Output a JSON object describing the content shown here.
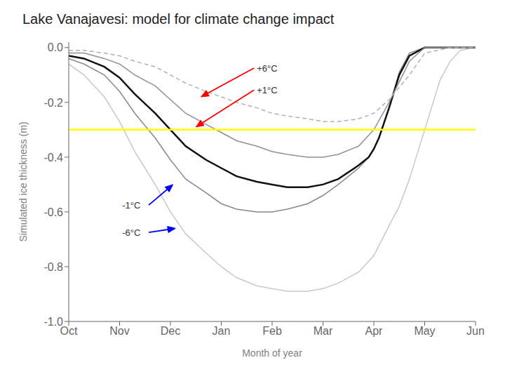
{
  "chart_data": {
    "type": "line",
    "title": "Lake Vanajavesi: model for climate change impact",
    "x_label": "Month of year",
    "y_label": "Simulated ice thickness (m)",
    "xlim": [
      0,
      8
    ],
    "xticks": [
      {
        "value": 0,
        "label": "Oct"
      },
      {
        "value": 1,
        "label": "Nov"
      },
      {
        "value": 2,
        "label": "Dec"
      },
      {
        "value": 3,
        "label": "Jan"
      },
      {
        "value": 4,
        "label": "Feb"
      },
      {
        "value": 5,
        "label": "Mar"
      },
      {
        "value": 6,
        "label": "Apr"
      },
      {
        "value": 7,
        "label": "May"
      },
      {
        "value": 8,
        "label": "Jun"
      }
    ],
    "ylim": [
      -1.0,
      0.02
    ],
    "yticks": [
      {
        "value": 0.0,
        "label": "0.0"
      },
      -0.2,
      -0.4,
      -0.6,
      -0.8,
      {
        "value": -1.0,
        "label": "-1.0"
      }
    ],
    "grid": false,
    "series": [
      {
        "color": "#c8c8c8",
        "line_style": "solid",
        "x": [
          0,
          0.3,
          0.7,
          1.0,
          1.3,
          1.7,
          2.0,
          2.3,
          2.7,
          3.0,
          3.3,
          3.7,
          4.0,
          4.3,
          4.7,
          5.0,
          5.3,
          5.7,
          6.0,
          6.3,
          6.5,
          6.7,
          7.0,
          7.3,
          7.5,
          7.7,
          8.0
        ],
        "values": [
          -0.06,
          -0.1,
          -0.18,
          -0.27,
          -0.38,
          -0.5,
          -0.6,
          -0.68,
          -0.75,
          -0.8,
          -0.84,
          -0.87,
          -0.88,
          -0.89,
          -0.89,
          -0.88,
          -0.86,
          -0.82,
          -0.76,
          -0.65,
          -0.58,
          -0.48,
          -0.3,
          -0.12,
          -0.05,
          -0.01,
          0.0
        ]
      },
      {
        "color": "#888888",
        "line_style": "solid",
        "x": [
          0,
          0.3,
          0.7,
          1.0,
          1.3,
          1.7,
          2.0,
          2.3,
          2.7,
          3.0,
          3.3,
          3.7,
          4.0,
          4.3,
          4.7,
          5.0,
          5.3,
          5.7,
          5.9,
          6.0,
          6.1,
          6.3,
          6.5,
          6.7,
          7.0,
          7.5,
          8.0
        ],
        "values": [
          -0.04,
          -0.06,
          -0.1,
          -0.16,
          -0.24,
          -0.33,
          -0.41,
          -0.48,
          -0.53,
          -0.57,
          -0.59,
          -0.6,
          -0.6,
          -0.59,
          -0.57,
          -0.54,
          -0.5,
          -0.44,
          -0.4,
          -0.37,
          -0.33,
          -0.22,
          -0.09,
          -0.02,
          0.0,
          0.0,
          0.0
        ]
      },
      {
        "color": "#111111",
        "line_style": "solid",
        "x": [
          0,
          0.3,
          0.7,
          1.0,
          1.3,
          1.7,
          2.0,
          2.3,
          2.7,
          3.0,
          3.3,
          3.7,
          4.0,
          4.3,
          4.7,
          5.0,
          5.3,
          5.7,
          5.9,
          6.0,
          6.1,
          6.3,
          6.5,
          6.7,
          7.0,
          7.5,
          8.0
        ],
        "values": [
          -0.03,
          -0.04,
          -0.07,
          -0.11,
          -0.17,
          -0.24,
          -0.3,
          -0.36,
          -0.41,
          -0.44,
          -0.47,
          -0.49,
          -0.5,
          -0.51,
          -0.51,
          -0.5,
          -0.48,
          -0.43,
          -0.4,
          -0.37,
          -0.33,
          -0.22,
          -0.1,
          -0.03,
          0.0,
          0.0,
          0.0
        ]
      },
      {
        "color": "#909090",
        "line_style": "solid",
        "x": [
          0,
          0.3,
          0.7,
          1.0,
          1.3,
          1.7,
          2.0,
          2.3,
          2.7,
          3.0,
          3.3,
          3.7,
          4.0,
          4.3,
          4.7,
          5.0,
          5.3,
          5.7,
          6.0,
          6.3,
          6.7,
          7.0,
          7.5,
          8.0
        ],
        "values": [
          -0.02,
          -0.02,
          -0.04,
          -0.06,
          -0.1,
          -0.14,
          -0.19,
          -0.24,
          -0.28,
          -0.31,
          -0.34,
          -0.36,
          -0.38,
          -0.39,
          -0.4,
          -0.4,
          -0.39,
          -0.36,
          -0.3,
          -0.2,
          -0.05,
          0.0,
          0.0,
          0.0
        ]
      },
      {
        "color": "#b0b0b0",
        "line_style": "dashed",
        "x": [
          0,
          0.3,
          0.7,
          1.0,
          1.3,
          1.7,
          2.0,
          2.3,
          2.7,
          3.0,
          3.3,
          3.7,
          4.0,
          4.3,
          4.7,
          5.0,
          5.3,
          5.7,
          6.0,
          6.3,
          6.7,
          7.0,
          7.5,
          8.0
        ],
        "values": [
          -0.01,
          -0.01,
          -0.02,
          -0.03,
          -0.05,
          -0.07,
          -0.1,
          -0.13,
          -0.16,
          -0.18,
          -0.2,
          -0.22,
          -0.24,
          -0.25,
          -0.26,
          -0.27,
          -0.27,
          -0.26,
          -0.24,
          -0.19,
          -0.1,
          -0.02,
          0.0,
          0.0
        ]
      }
    ],
    "hlines": [
      {
        "y": -0.3,
        "color": "yellow"
      }
    ],
    "annotations": [
      {
        "text": "+6°C",
        "color": "red"
      },
      {
        "text": "+1°C",
        "color": "red"
      },
      {
        "text": "-1°C",
        "color": "blue"
      },
      {
        "text": "-6°C",
        "color": "blue"
      }
    ]
  }
}
